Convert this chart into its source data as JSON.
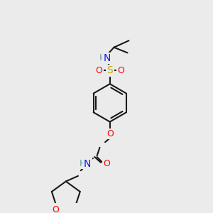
{
  "background_color": "#ebebeb",
  "figsize": [
    3.0,
    3.0
  ],
  "dpi": 100,
  "bond_color": "#1a1a1a",
  "bond_lw": 1.5,
  "atom_colors": {
    "N": "#1414ff",
    "O": "#ff0000",
    "S": "#ccaa00",
    "H": "#5f9ea0",
    "C": "#1a1a1a"
  }
}
